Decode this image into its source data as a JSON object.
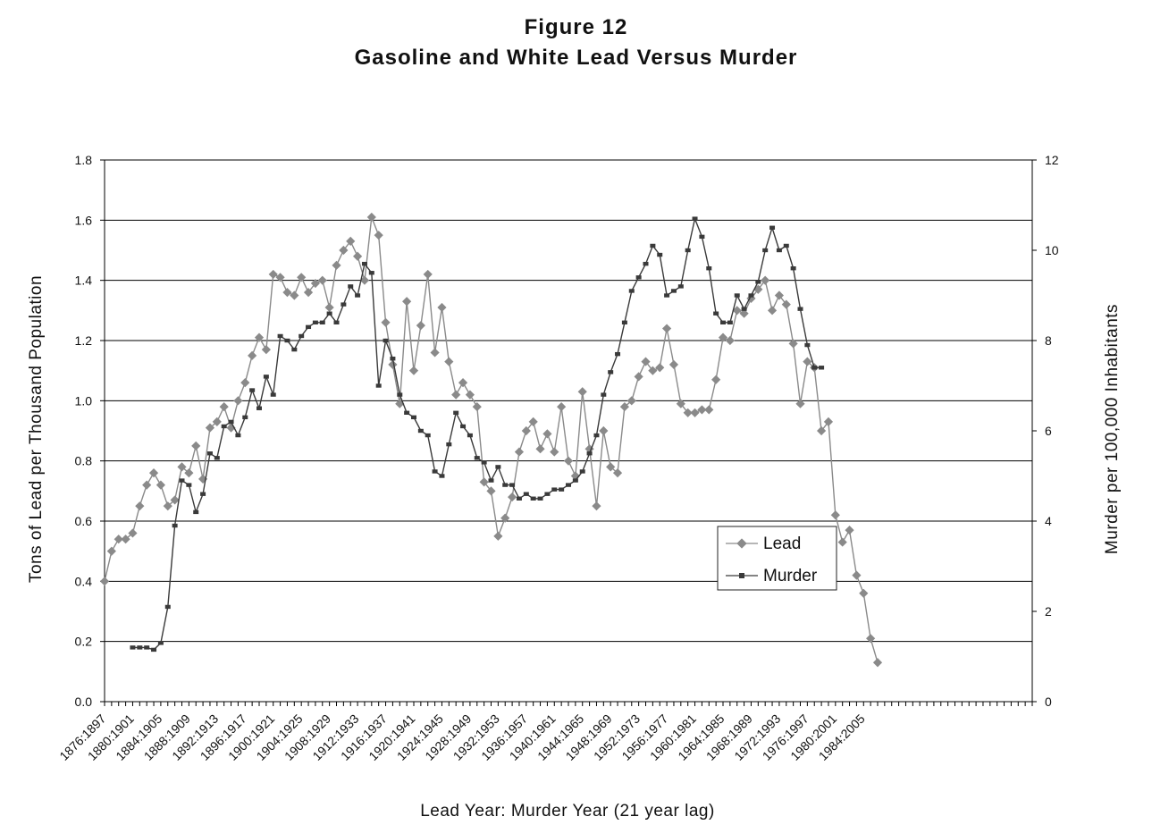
{
  "chart_data": {
    "type": "line",
    "title": "Figure 12",
    "subtitle": "Gasoline and White Lead Versus Murder",
    "xlabel": "Lead Year:  Murder Year (21 year lag)",
    "ylabel": "Tons of Lead per Thousand Population",
    "y2label": "Murder per 100,000 Inhabitants",
    "ylim": [
      0,
      1.8
    ],
    "y2lim": [
      0,
      12
    ],
    "yticks": [
      "0.0",
      "0.2",
      "0.4",
      "0.6",
      "0.8",
      "1.0",
      "1.2",
      "1.4",
      "1.6",
      "1.8"
    ],
    "y2ticks": [
      "0",
      "2",
      "4",
      "6",
      "8",
      "10",
      "12"
    ],
    "grid": "horizontal",
    "legend_position": "center-right",
    "x_tick_labels": [
      "1876:1897",
      "1880:1901",
      "1884:1905",
      "1888:1909",
      "1892:1913",
      "1896:1917",
      "1900:1921",
      "1904:1925",
      "1908:1929",
      "1912:1933",
      "1916:1937",
      "1920:1941",
      "1924:1945",
      "1928:1949",
      "1932:1953",
      "1936:1957",
      "1940:1961",
      "1944:1965",
      "1948:1969",
      "1952:1973",
      "1956:1977",
      "1960:1981",
      "1964:1985",
      "1968:1989",
      "1972:1993",
      "1976:1997",
      "1980:2001",
      "1984:2005"
    ],
    "x_start": 1876,
    "x_end": 2008,
    "series": [
      {
        "name": "Lead",
        "axis": "left",
        "marker": "diamond",
        "color": "#8a8a8a",
        "x_start": 1876,
        "values": [
          0.4,
          0.5,
          0.54,
          0.54,
          0.56,
          0.65,
          0.72,
          0.76,
          0.72,
          0.65,
          0.67,
          0.78,
          0.76,
          0.85,
          0.74,
          0.91,
          0.93,
          0.98,
          0.91,
          1.0,
          1.06,
          1.15,
          1.21,
          1.17,
          1.42,
          1.41,
          1.36,
          1.35,
          1.41,
          1.36,
          1.39,
          1.4,
          1.31,
          1.45,
          1.5,
          1.53,
          1.48,
          1.4,
          1.61,
          1.55,
          1.26,
          1.12,
          0.99,
          1.33,
          1.1,
          1.25,
          1.42,
          1.16,
          1.31,
          1.13,
          1.02,
          1.06,
          1.02,
          0.98,
          0.73,
          0.7,
          0.55,
          0.61,
          0.68,
          0.83,
          0.9,
          0.93,
          0.84,
          0.89,
          0.83,
          0.98,
          0.8,
          0.75,
          1.03,
          0.84,
          0.65,
          0.9,
          0.78,
          0.76,
          0.98,
          1.0,
          1.08,
          1.13,
          1.1,
          1.11,
          1.24,
          1.12,
          0.99,
          0.96,
          0.96,
          0.97,
          0.97,
          1.07,
          1.21,
          1.2,
          1.3,
          1.29,
          1.34,
          1.37,
          1.4,
          1.3,
          1.35,
          1.32,
          1.19,
          0.99,
          1.13,
          1.11,
          0.9,
          0.93,
          0.62,
          0.53,
          0.57,
          0.42,
          0.36,
          0.21,
          0.13
        ]
      },
      {
        "name": "Murder",
        "axis": "right",
        "marker": "square",
        "color": "#3a3a3a",
        "x_start": 1880,
        "values": [
          1.2,
          1.2,
          1.2,
          1.15,
          1.3,
          2.1,
          3.9,
          4.9,
          4.8,
          4.2,
          4.6,
          5.5,
          5.4,
          6.1,
          6.2,
          5.9,
          6.3,
          6.9,
          6.5,
          7.2,
          6.8,
          8.1,
          8.0,
          7.8,
          8.1,
          8.3,
          8.4,
          8.4,
          8.6,
          8.4,
          8.8,
          9.2,
          9.0,
          9.7,
          9.5,
          7.0,
          8.0,
          7.6,
          6.8,
          6.4,
          6.3,
          6.0,
          5.9,
          5.1,
          5.0,
          5.7,
          6.4,
          6.1,
          5.9,
          5.4,
          5.3,
          4.9,
          5.2,
          4.8,
          4.8,
          4.5,
          4.6,
          4.5,
          4.5,
          4.6,
          4.7,
          4.7,
          4.8,
          4.9,
          5.1,
          5.5,
          5.9,
          6.8,
          7.3,
          7.7,
          8.4,
          9.1,
          9.4,
          9.7,
          10.1,
          9.9,
          9.0,
          9.1,
          9.2,
          10.0,
          10.7,
          10.3,
          9.6,
          8.6,
          8.4,
          8.4,
          9.0,
          8.7,
          9.0,
          9.3,
          10.0,
          10.5,
          10.0,
          10.1,
          9.6,
          8.7,
          7.9,
          7.4,
          7.4
        ]
      }
    ]
  }
}
